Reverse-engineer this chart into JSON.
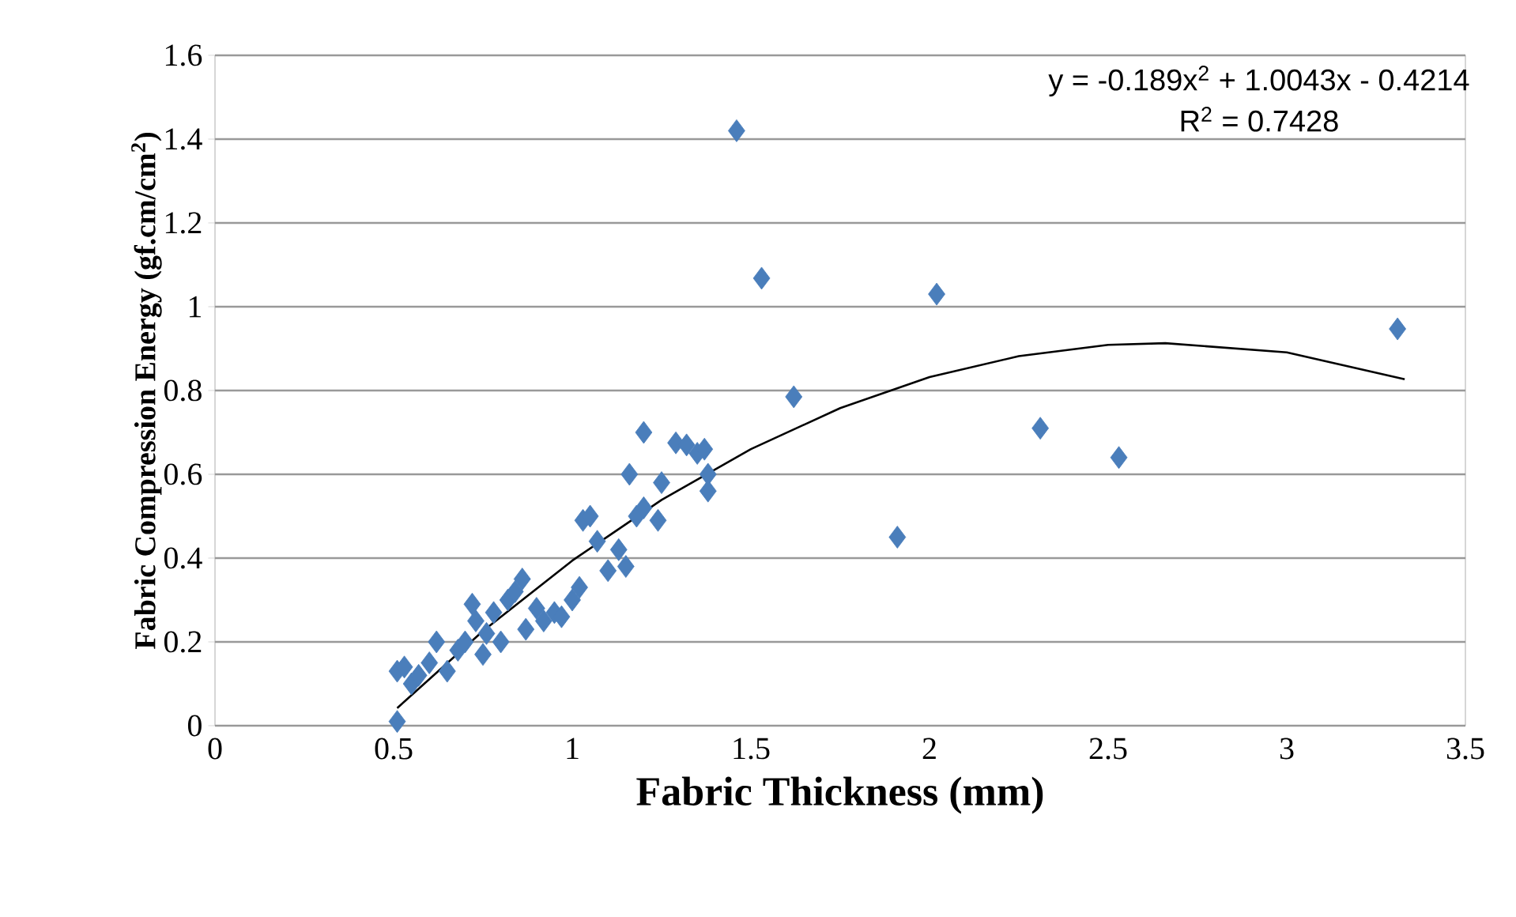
{
  "chart_data": {
    "type": "scatter",
    "xlabel": "Fabric Thickness (mm)",
    "ylabel": "Fabric Compression Energy (gf.cm/cm$^{2}$)",
    "xlim": [
      0,
      3.5
    ],
    "xticks": [
      0,
      0.5,
      1,
      1.5,
      2,
      2.5,
      3,
      3.5
    ],
    "ylim": [
      0,
      1.6
    ],
    "yticks": [
      0,
      0.2,
      0.4,
      0.6,
      0.8,
      1,
      1.2,
      1.4,
      1.6
    ],
    "grid": "y",
    "annotations": [
      "y = -0.189x$^{2}$ + 1.0043x - 0.4214",
      "R$^{2}$ = 0.7428"
    ],
    "series": [
      {
        "marker": "diamond",
        "color": "#4a7ebb",
        "x": [
          0.51,
          0.51,
          0.53,
          0.55,
          0.57,
          0.6,
          0.62,
          0.65,
          0.68,
          0.7,
          0.72,
          0.73,
          0.75,
          0.76,
          0.78,
          0.8,
          0.82,
          0.84,
          0.86,
          0.87,
          0.9,
          0.92,
          0.95,
          0.97,
          1.0,
          1.02,
          1.03,
          1.05,
          1.07,
          1.1,
          1.13,
          1.15,
          1.16,
          1.18,
          1.2,
          1.2,
          1.24,
          1.25,
          1.29,
          1.32,
          1.35,
          1.37,
          1.38,
          1.38,
          1.46,
          1.53,
          1.62,
          1.91,
          2.02,
          2.31,
          2.53,
          3.31
        ],
        "values": [
          0.01,
          0.13,
          0.14,
          0.1,
          0.12,
          0.15,
          0.2,
          0.13,
          0.18,
          0.2,
          0.29,
          0.25,
          0.17,
          0.22,
          0.27,
          0.2,
          0.3,
          0.32,
          0.35,
          0.23,
          0.28,
          0.25,
          0.27,
          0.26,
          0.3,
          0.33,
          0.49,
          0.5,
          0.44,
          0.37,
          0.42,
          0.38,
          0.6,
          0.5,
          0.52,
          0.7,
          0.49,
          0.58,
          0.675,
          0.67,
          0.65,
          0.66,
          0.6,
          0.56,
          1.42,
          1.068,
          0.785,
          0.45,
          1.03,
          0.71,
          0.64,
          0.947
        ]
      },
      {
        "type": "line",
        "marker": "none",
        "color": "#000000",
        "x": [
          0.51,
          0.75,
          1,
          1.25,
          1.5,
          1.75,
          2,
          2.25,
          2.5,
          2.66,
          3,
          3.33
        ],
        "values": [
          0.042,
          0.226,
          0.394,
          0.539,
          0.66,
          0.758,
          0.832,
          0.882,
          0.909,
          0.913,
          0.891,
          0.827
        ]
      }
    ]
  }
}
